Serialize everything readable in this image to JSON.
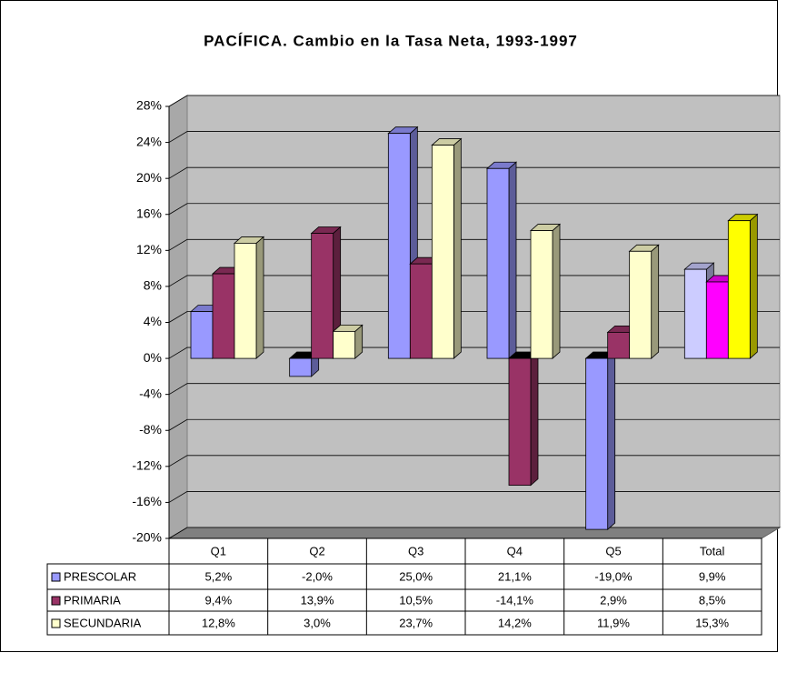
{
  "chart_data": {
    "type": "bar3d",
    "title": "PACÍFICA. Cambio en la Tasa Neta, 1993-1997",
    "categories": [
      "Q1",
      "Q2",
      "Q3",
      "Q4",
      "Q5",
      "Total"
    ],
    "series": [
      {
        "name": "PRESCOLAR",
        "color": "#9999ff",
        "colors": [
          "#9999ff",
          "#9999ff",
          "#9999ff",
          "#9999ff",
          "#9999ff",
          "#ccccff"
        ],
        "values": [
          5.2,
          -2.0,
          25.0,
          21.1,
          -19.0,
          9.9
        ],
        "value_labels": [
          "5,2%",
          "-2,0%",
          "25,0%",
          "21,1%",
          "-19,0%",
          "9,9%"
        ]
      },
      {
        "name": "PRIMARIA",
        "color": "#993366",
        "colors": [
          "#993366",
          "#993366",
          "#993366",
          "#993366",
          "#993366",
          "#ff00ff"
        ],
        "values": [
          9.4,
          13.9,
          10.5,
          -14.1,
          2.9,
          8.5
        ],
        "value_labels": [
          "9,4%",
          "13,9%",
          "10,5%",
          "-14,1%",
          "2,9%",
          "8,5%"
        ]
      },
      {
        "name": "SECUNDARIA",
        "color": "#ffffcc",
        "colors": [
          "#ffffcc",
          "#ffffcc",
          "#ffffcc",
          "#ffffcc",
          "#ffffcc",
          "#ffff00"
        ],
        "values": [
          12.8,
          3.0,
          23.7,
          14.2,
          11.9,
          15.3
        ],
        "value_labels": [
          "12,8%",
          "3,0%",
          "23,7%",
          "14,2%",
          "11,9%",
          "15,3%"
        ]
      }
    ],
    "ylim": [
      -20,
      28
    ],
    "yticks": [
      {
        "value": -20,
        "label": "-20%"
      },
      {
        "value": -16,
        "label": "-16%"
      },
      {
        "value": -12,
        "label": "-12%"
      },
      {
        "value": -8,
        "label": "-8%"
      },
      {
        "value": -4,
        "label": "-4%"
      },
      {
        "value": 0,
        "label": "0%"
      },
      {
        "value": 4,
        "label": "4%"
      },
      {
        "value": 8,
        "label": "8%"
      },
      {
        "value": 12,
        "label": "12%"
      },
      {
        "value": 16,
        "label": "16%"
      },
      {
        "value": 20,
        "label": "20%"
      },
      {
        "value": 24,
        "label": "24%"
      },
      {
        "value": 28,
        "label": "28%"
      }
    ],
    "grid": true
  }
}
